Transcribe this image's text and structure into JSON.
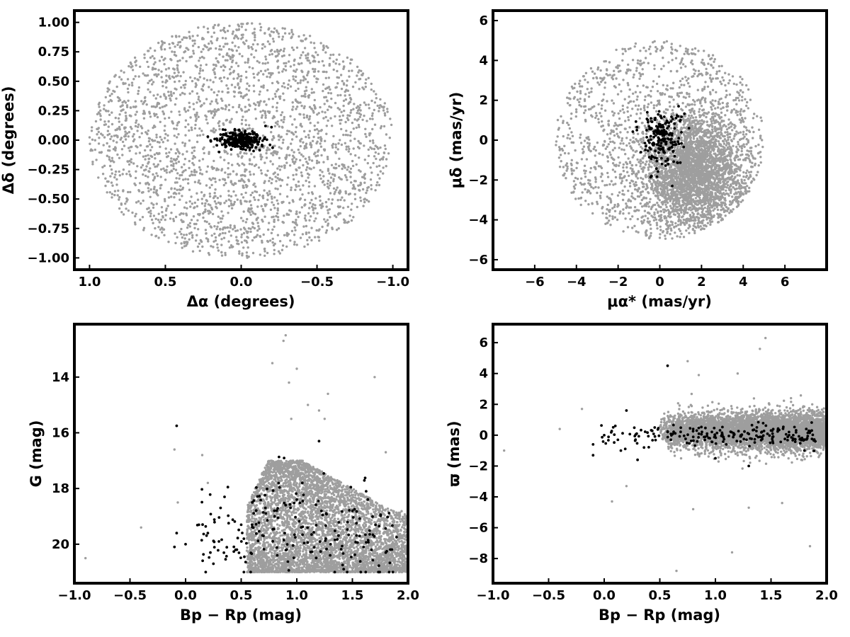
{
  "figure": {
    "gray_color": "#9e9e9e",
    "member_color": "#000000"
  },
  "chart_data": [
    {
      "type": "scatter",
      "id": "sky",
      "title": "",
      "xlabel": "Δα (degrees)",
      "ylabel": "Δδ (degrees)",
      "xlim": [
        1.1,
        -1.1
      ],
      "ylim": [
        -1.1,
        1.1
      ],
      "x_inverted": true,
      "xticks": [
        1.0,
        0.5,
        0.0,
        -0.5,
        -1.0
      ],
      "xtick_labels": [
        "1.0",
        "0.5",
        "0.0",
        "−0.5",
        "−1.0"
      ],
      "yticks": [
        1.0,
        0.75,
        0.5,
        0.25,
        0.0,
        -0.25,
        -0.5,
        -0.75,
        -1.0
      ],
      "ytick_labels": [
        "1.00",
        "0.75",
        "0.50",
        "0.25",
        "0.00",
        "−0.25",
        "−0.50",
        "−0.75",
        "−1.00"
      ],
      "grid": false,
      "series": [
        {
          "role": "field stars",
          "color": "#9e9e9e",
          "distribution": {
            "shape": "disk",
            "center": [
              0,
              0
            ],
            "radius": 1.0,
            "count": 2600
          },
          "points": [
            [
              0.95,
              0.05
            ],
            [
              -0.98,
              0.02
            ],
            [
              0.02,
              0.98
            ],
            [
              -0.05,
              -0.99
            ],
            [
              0.7,
              0.7
            ],
            [
              -0.7,
              0.7
            ],
            [
              0.7,
              -0.7
            ],
            [
              -0.7,
              -0.7
            ],
            [
              0.3,
              0.2
            ],
            [
              -0.4,
              -0.3
            ]
          ]
        },
        {
          "role": "members",
          "color": "#000000",
          "distribution": {
            "shape": "ellipse",
            "center": [
              0.0,
              0.0
            ],
            "sigma": [
              0.07,
              0.035
            ],
            "count": 300
          },
          "points": [
            [
              0.22,
              0.03
            ],
            [
              0.2,
              -0.01
            ],
            [
              -0.2,
              0.11
            ],
            [
              -0.16,
              0.12
            ],
            [
              -0.19,
              -0.04
            ],
            [
              0.12,
              0.09
            ],
            [
              0.0,
              0.0
            ]
          ]
        }
      ]
    },
    {
      "type": "scatter",
      "id": "proper-motion",
      "title": "",
      "xlabel": "μα* (mas/yr)",
      "ylabel": "μδ (mas/yr)",
      "xlim": [
        -8,
        8
      ],
      "ylim": [
        -6.5,
        6.5
      ],
      "xticks": [
        -6,
        -4,
        -2,
        0,
        2,
        4,
        6
      ],
      "xtick_labels": [
        "−6",
        "−4",
        "−2",
        "0",
        "2",
        "4",
        "6"
      ],
      "yticks": [
        6,
        4,
        2,
        0,
        -2,
        -4,
        -6
      ],
      "ytick_labels": [
        "6",
        "4",
        "2",
        "0",
        "−2",
        "−4",
        "−6"
      ],
      "grid": false,
      "series": [
        {
          "role": "field stars",
          "color": "#9e9e9e",
          "distribution": {
            "shape": "disk-plus-core",
            "center": [
              0,
              0
            ],
            "radius": 5.0,
            "disk_count": 1300,
            "core": {
              "center": [
                1.6,
                -1.6
              ],
              "sigma": [
                1.2,
                1.4
              ],
              "count": 3200,
              "clip_radius": 5.0
            }
          },
          "points": [
            [
              -4.8,
              -0.5
            ],
            [
              4.9,
              0.0
            ],
            [
              0.2,
              4.9
            ],
            [
              0.0,
              -4.9
            ],
            [
              3.5,
              3.2
            ],
            [
              -3.3,
              3.6
            ],
            [
              1.7,
              4.6
            ],
            [
              -2.4,
              -3.8
            ]
          ]
        },
        {
          "role": "members",
          "color": "#000000",
          "distribution": {
            "shape": "ellipse",
            "center": [
              0.1,
              0.1
            ],
            "sigma": [
              0.5,
              0.7
            ],
            "count": 180
          },
          "points": [
            [
              -0.6,
              1.4
            ],
            [
              0.9,
              1.7
            ],
            [
              0.4,
              -1.2
            ],
            [
              -0.4,
              -1.8
            ],
            [
              1.4,
              0.6
            ],
            [
              -1.1,
              0.5
            ]
          ]
        }
      ]
    },
    {
      "type": "scatter",
      "id": "cmd",
      "title": "",
      "xlabel": "Bp − Rp (mag)",
      "ylabel": "G (mag)",
      "xlim": [
        -1.0,
        2.0
      ],
      "ylim": [
        21.4,
        12.1
      ],
      "y_inverted": true,
      "xticks": [
        -1.0,
        -0.5,
        0.0,
        0.5,
        1.0,
        1.5,
        2.0
      ],
      "xtick_labels": [
        "−1.0",
        "−0.5",
        "0.0",
        "0.5",
        "1.0",
        "1.5",
        "2.0"
      ],
      "yticks": [
        20,
        18,
        16,
        14
      ],
      "ytick_labels": [
        "20",
        "18",
        "16",
        "14"
      ],
      "grid": false,
      "series": [
        {
          "role": "field stars",
          "color": "#9e9e9e",
          "distribution": {
            "shape": "wedge",
            "color_range": [
              0.55,
              2.0
            ],
            "mag_range": [
              17.0,
              21.0
            ],
            "count": 5200
          },
          "points": [
            [
              -0.9,
              20.5
            ],
            [
              -0.4,
              19.4
            ],
            [
              -0.07,
              18.5
            ],
            [
              -0.1,
              16.6
            ],
            [
              0.15,
              16.8
            ],
            [
              0.2,
              17.8
            ],
            [
              0.78,
              13.5
            ],
            [
              0.93,
              14.2
            ],
            [
              1.0,
              13.7
            ],
            [
              0.88,
              12.7
            ],
            [
              0.9,
              12.5
            ],
            [
              1.7,
              14.0
            ],
            [
              1.28,
              14.6
            ],
            [
              1.2,
              15.2
            ],
            [
              1.25,
              15.5
            ],
            [
              1.1,
              15.0
            ],
            [
              0.95,
              15.5
            ],
            [
              1.8,
              16.7
            ]
          ]
        },
        {
          "role": "members",
          "color": "#000000",
          "distribution": {
            "shape": "sequence",
            "count": 200
          },
          "points": [
            [
              -0.1,
              20.1
            ],
            [
              -0.08,
              19.6
            ],
            [
              -0.08,
              15.75
            ],
            [
              0.0,
              20.0
            ],
            [
              0.12,
              19.3
            ],
            [
              0.2,
              19.6
            ],
            [
              0.25,
              20.7
            ],
            [
              0.3,
              19.9
            ],
            [
              0.35,
              18.3
            ],
            [
              0.38,
              17.95
            ],
            [
              0.45,
              20.2
            ],
            [
              0.5,
              19.3
            ],
            [
              0.6,
              18.5
            ],
            [
              0.7,
              19.7
            ],
            [
              0.8,
              19.0
            ],
            [
              0.9,
              18.6
            ],
            [
              1.0,
              18.4
            ],
            [
              1.05,
              17.8
            ],
            [
              1.2,
              16.3
            ],
            [
              1.3,
              20.4
            ],
            [
              1.5,
              18.8
            ],
            [
              1.6,
              20.1
            ],
            [
              1.8,
              20.3
            ]
          ]
        }
      ]
    },
    {
      "type": "scatter",
      "id": "parallax",
      "title": "",
      "xlabel": "Bp − Rp (mag)",
      "ylabel": "ϖ (mas)",
      "xlim": [
        -1.0,
        2.0
      ],
      "ylim": [
        -9.6,
        7.2
      ],
      "xticks": [
        -1.0,
        -0.5,
        0.0,
        0.5,
        1.0,
        1.5,
        2.0
      ],
      "xtick_labels": [
        "−1.0",
        "−0.5",
        "0.0",
        "0.5",
        "1.0",
        "1.5",
        "2.0"
      ],
      "yticks": [
        6,
        4,
        2,
        0,
        -2,
        -4,
        -6,
        -8
      ],
      "ytick_labels": [
        "6",
        "4",
        "2",
        "0",
        "−2",
        "−4",
        "−6",
        "−8"
      ],
      "grid": false,
      "series": [
        {
          "role": "field stars",
          "color": "#9e9e9e",
          "distribution": {
            "shape": "band",
            "color_range": [
              0.5,
              2.0
            ],
            "mean": 0.25,
            "sigma": 0.75,
            "count": 5200
          },
          "points": [
            [
              -0.9,
              -1.0
            ],
            [
              -0.4,
              0.4
            ],
            [
              -0.2,
              1.7
            ],
            [
              0.07,
              -4.3
            ],
            [
              0.2,
              -3.3
            ],
            [
              0.65,
              -8.8
            ],
            [
              0.75,
              4.8
            ],
            [
              0.8,
              -4.8
            ],
            [
              0.85,
              3.9
            ],
            [
              1.15,
              -7.6
            ],
            [
              1.3,
              -4.7
            ],
            [
              1.4,
              5.6
            ],
            [
              1.45,
              6.3
            ],
            [
              1.85,
              -7.2
            ],
            [
              1.6,
              -4.4
            ],
            [
              1.2,
              4.0
            ]
          ]
        },
        {
          "role": "members",
          "color": "#000000",
          "distribution": {
            "shape": "band",
            "color_range": [
              -0.1,
              1.9
            ],
            "mean": 0.0,
            "sigma": 0.45,
            "count": 200
          },
          "points": [
            [
              -0.1,
              -0.6
            ],
            [
              -0.1,
              -1.3
            ],
            [
              0.0,
              0.0
            ],
            [
              0.1,
              0.6
            ],
            [
              0.15,
              -1.0
            ],
            [
              0.2,
              1.6
            ],
            [
              0.3,
              -1.6
            ],
            [
              0.57,
              4.5
            ],
            [
              0.6,
              -0.3
            ],
            [
              0.8,
              0.4
            ],
            [
              1.0,
              -1.5
            ],
            [
              1.3,
              -2.0
            ],
            [
              1.5,
              0.3
            ],
            [
              1.7,
              0.0
            ]
          ]
        }
      ]
    }
  ]
}
